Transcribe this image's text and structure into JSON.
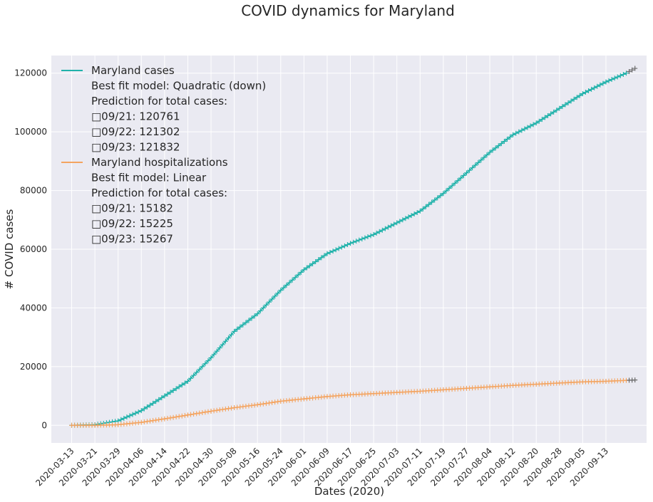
{
  "chart_data": {
    "type": "line",
    "title": "COVID dynamics for Maryland",
    "xlabel": "Dates (2020)",
    "ylabel": "# COVID cases",
    "ylim": [
      -6000,
      126000
    ],
    "yticks": [
      0,
      20000,
      40000,
      60000,
      80000,
      100000,
      120000
    ],
    "ytick_labels": [
      "0",
      "20000",
      "40000",
      "60000",
      "80000",
      "100000",
      "120000"
    ],
    "x_start": "2020-03-13",
    "x_end": "2020-09-20",
    "xlim": [
      "2020-03-06",
      "2020-09-27"
    ],
    "xtick_labels": [
      "2020-03-13",
      "2020-03-21",
      "2020-03-29",
      "2020-04-06",
      "2020-04-14",
      "2020-04-22",
      "2020-04-30",
      "2020-05-08",
      "2020-05-16",
      "2020-05-24",
      "2020-06-01",
      "2020-06-09",
      "2020-06-17",
      "2020-06-25",
      "2020-07-03",
      "2020-07-11",
      "2020-07-19",
      "2020-07-27",
      "2020-08-04",
      "2020-08-12",
      "2020-08-20",
      "2020-08-28",
      "2020-09-05",
      "2020-09-13"
    ],
    "grid": true,
    "legend_position": "top-left",
    "series": [
      {
        "name": "Maryland cases",
        "color": "#20b2aa",
        "marker": "+",
        "anchors": [
          [
            "2020-03-13",
            0
          ],
          [
            "2020-03-21",
            200
          ],
          [
            "2020-03-29",
            1500
          ],
          [
            "2020-04-06",
            5000
          ],
          [
            "2020-04-14",
            10000
          ],
          [
            "2020-04-22",
            15000
          ],
          [
            "2020-04-30",
            23000
          ],
          [
            "2020-05-08",
            32000
          ],
          [
            "2020-05-16",
            38000
          ],
          [
            "2020-05-24",
            46000
          ],
          [
            "2020-06-01",
            53000
          ],
          [
            "2020-06-09",
            58500
          ],
          [
            "2020-06-17",
            62000
          ],
          [
            "2020-06-25",
            65000
          ],
          [
            "2020-07-03",
            69000
          ],
          [
            "2020-07-11",
            73000
          ],
          [
            "2020-07-19",
            79000
          ],
          [
            "2020-07-27",
            86000
          ],
          [
            "2020-08-04",
            93000
          ],
          [
            "2020-08-12",
            99000
          ],
          [
            "2020-08-20",
            103000
          ],
          [
            "2020-08-28",
            108000
          ],
          [
            "2020-09-05",
            113000
          ],
          [
            "2020-09-13",
            117000
          ],
          [
            "2020-09-20",
            120000
          ]
        ]
      },
      {
        "name": "Maryland hospitalizations",
        "color": "#f4a460",
        "marker": "+",
        "anchors": [
          [
            "2020-03-13",
            0
          ],
          [
            "2020-03-21",
            0
          ],
          [
            "2020-03-29",
            200
          ],
          [
            "2020-04-06",
            1000
          ],
          [
            "2020-04-14",
            2200
          ],
          [
            "2020-04-22",
            3500
          ],
          [
            "2020-04-30",
            4800
          ],
          [
            "2020-05-08",
            6000
          ],
          [
            "2020-05-16",
            7000
          ],
          [
            "2020-05-24",
            8200
          ],
          [
            "2020-06-01",
            9000
          ],
          [
            "2020-06-09",
            9800
          ],
          [
            "2020-06-17",
            10400
          ],
          [
            "2020-06-25",
            10800
          ],
          [
            "2020-07-03",
            11200
          ],
          [
            "2020-07-11",
            11600
          ],
          [
            "2020-07-19",
            12100
          ],
          [
            "2020-07-27",
            12600
          ],
          [
            "2020-08-04",
            13100
          ],
          [
            "2020-08-12",
            13600
          ],
          [
            "2020-08-20",
            14000
          ],
          [
            "2020-08-28",
            14400
          ],
          [
            "2020-09-05",
            14800
          ],
          [
            "2020-09-13",
            15000
          ],
          [
            "2020-09-20",
            15300
          ]
        ]
      }
    ],
    "legend": [
      {
        "label": "Maryland cases",
        "color": "#20b2aa",
        "details": [
          "Best fit model: Quadratic (down)",
          "Prediction for total cases:",
          "□09/21: 120761",
          "□09/22: 121302",
          "□09/23: 121832"
        ]
      },
      {
        "label": "Maryland hospitalizations",
        "color": "#f4a460",
        "details": [
          "Best fit model: Linear",
          "Prediction for total cases:",
          "□09/21: 15182",
          "□09/22: 15225",
          "□09/23: 15267"
        ]
      }
    ],
    "colors": {
      "plot_background": "#eaeaf2",
      "grid": "#ffffff",
      "text": "#262626",
      "prediction_marker": "#6b6b6b"
    }
  }
}
